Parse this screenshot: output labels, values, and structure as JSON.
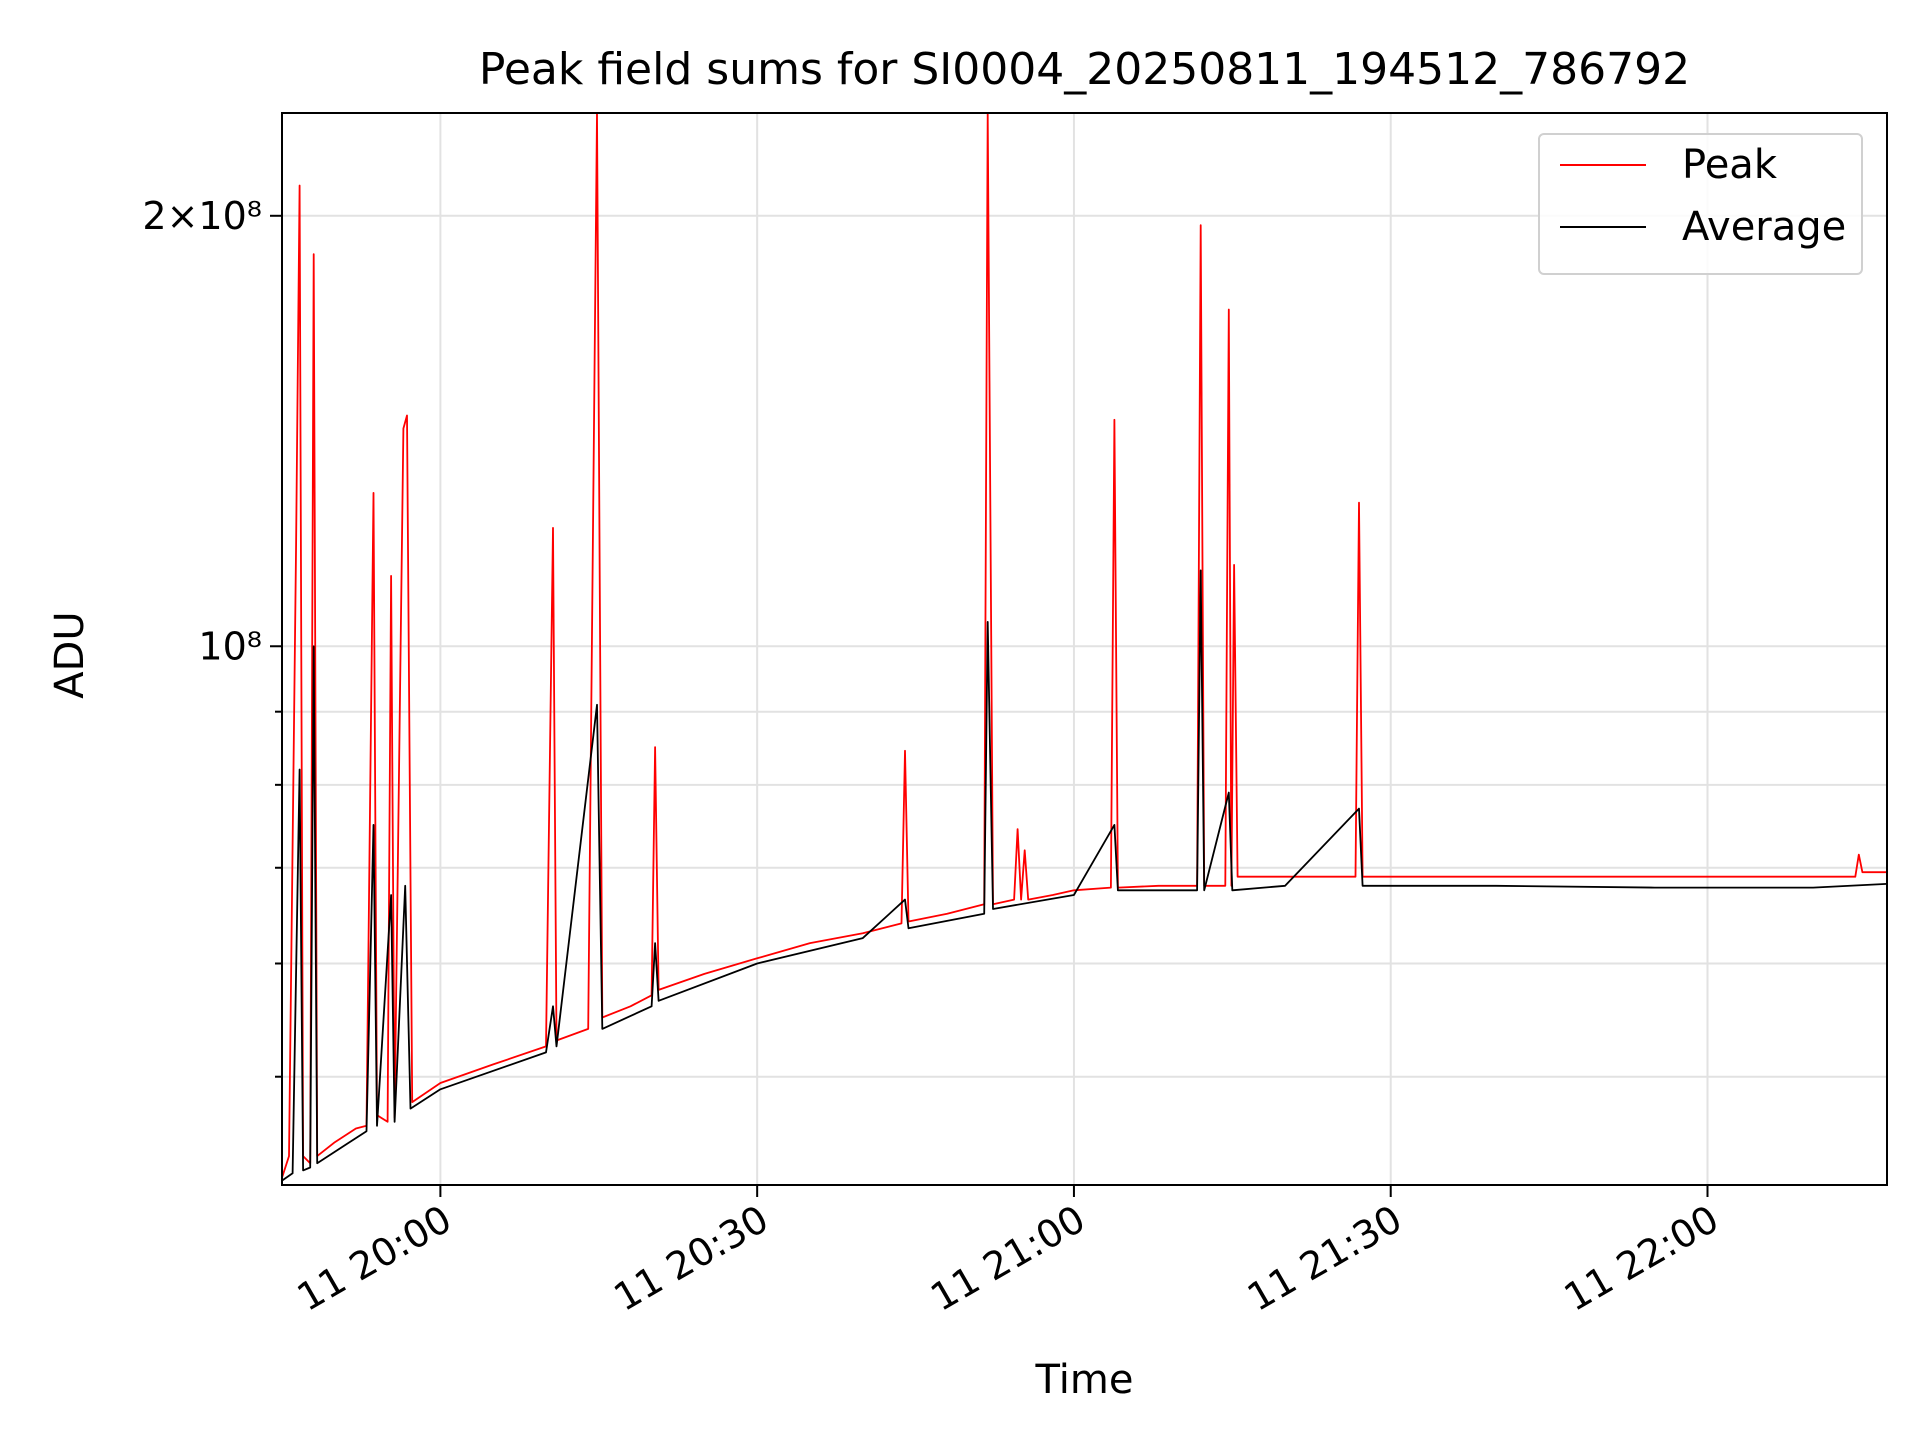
{
  "chart_data": {
    "type": "line",
    "title": "Peak field sums for SI0004_20250811_194512_786792",
    "xlabel": "Time",
    "ylabel": "ADU",
    "yscale": "log",
    "ylim": [
      42000000,
      236000000
    ],
    "x_range": [
      "2025-08-11 19:45:00",
      "2025-08-11 22:17:00"
    ],
    "x_ticks": [
      "11 20:00",
      "11 20:30",
      "11 21:00",
      "11 21:30",
      "11 22:00"
    ],
    "y_ticks": [
      "2×10⁸",
      "10⁸"
    ],
    "grid": true,
    "legend_position": "upper right",
    "colors": {
      "Peak": "#ff0000",
      "Average": "#000000"
    },
    "series": [
      {
        "name": "Peak",
        "points": [
          [
            "2025-08-11 19:45:00",
            42500000
          ],
          [
            "2025-08-11 19:45:40",
            44000000
          ],
          [
            "2025-08-11 19:46:20",
            118000000
          ],
          [
            "2025-08-11 19:46:40",
            210000000
          ],
          [
            "2025-08-11 19:47:00",
            44000000
          ],
          [
            "2025-08-11 19:47:40",
            43500000
          ],
          [
            "2025-08-11 19:48:00",
            188000000
          ],
          [
            "2025-08-11 19:48:20",
            44000000
          ],
          [
            "2025-08-11 19:50:00",
            45000000
          ],
          [
            "2025-08-11 19:52:00",
            46000000
          ],
          [
            "2025-08-11 19:53:00",
            46200000
          ],
          [
            "2025-08-11 19:53:40",
            128000000
          ],
          [
            "2025-08-11 19:54:00",
            47000000
          ],
          [
            "2025-08-11 19:55:00",
            46500000
          ],
          [
            "2025-08-11 19:55:20",
            112000000
          ],
          [
            "2025-08-11 19:55:40",
            46800000
          ],
          [
            "2025-08-11 19:56:30",
            142000000
          ],
          [
            "2025-08-11 19:56:50",
            145000000
          ],
          [
            "2025-08-11 19:57:20",
            48000000
          ],
          [
            "2025-08-11 20:00:00",
            49500000
          ],
          [
            "2025-08-11 20:05:00",
            51000000
          ],
          [
            "2025-08-11 20:10:00",
            52500000
          ],
          [
            "2025-08-11 20:10:40",
            121000000
          ],
          [
            "2025-08-11 20:11:00",
            53000000
          ],
          [
            "2025-08-11 20:14:00",
            54000000
          ],
          [
            "2025-08-11 20:14:50",
            236000000
          ],
          [
            "2025-08-11 20:15:20",
            55000000
          ],
          [
            "2025-08-11 20:18:00",
            56000000
          ],
          [
            "2025-08-11 20:20:00",
            57000000
          ],
          [
            "2025-08-11 20:20:20",
            85000000
          ],
          [
            "2025-08-11 20:20:40",
            57500000
          ],
          [
            "2025-08-11 20:25:00",
            59000000
          ],
          [
            "2025-08-11 20:30:00",
            60500000
          ],
          [
            "2025-08-11 20:35:00",
            62000000
          ],
          [
            "2025-08-11 20:40:00",
            63000000
          ],
          [
            "2025-08-11 20:43:40",
            64000000
          ],
          [
            "2025-08-11 20:44:00",
            84500000
          ],
          [
            "2025-08-11 20:44:20",
            64200000
          ],
          [
            "2025-08-11 20:48:00",
            65000000
          ],
          [
            "2025-08-11 20:51:30",
            66000000
          ],
          [
            "2025-08-11 20:51:50",
            236000000
          ],
          [
            "2025-08-11 20:52:20",
            66000000
          ],
          [
            "2025-08-11 20:54:20",
            66500000
          ],
          [
            "2025-08-11 20:54:40",
            74500000
          ],
          [
            "2025-08-11 20:55:00",
            66500000
          ],
          [
            "2025-08-11 20:55:20",
            72000000
          ],
          [
            "2025-08-11 20:55:40",
            66500000
          ],
          [
            "2025-08-11 20:58:00",
            67000000
          ],
          [
            "2025-08-11 21:00:00",
            67500000
          ],
          [
            "2025-08-11 21:03:30",
            67800000
          ],
          [
            "2025-08-11 21:03:50",
            144000000
          ],
          [
            "2025-08-11 21:04:10",
            67800000
          ],
          [
            "2025-08-11 21:08:00",
            68000000
          ],
          [
            "2025-08-11 21:11:40",
            68000000
          ],
          [
            "2025-08-11 21:12:00",
            197000000
          ],
          [
            "2025-08-11 21:12:20",
            68000000
          ],
          [
            "2025-08-11 21:14:20",
            68000000
          ],
          [
            "2025-08-11 21:14:40",
            172000000
          ],
          [
            "2025-08-11 21:14:55",
            68000000
          ],
          [
            "2025-08-11 21:15:10",
            114000000
          ],
          [
            "2025-08-11 21:15:30",
            69000000
          ],
          [
            "2025-08-11 21:20:00",
            69000000
          ],
          [
            "2025-08-11 21:26:40",
            69000000
          ],
          [
            "2025-08-11 21:27:00",
            126000000
          ],
          [
            "2025-08-11 21:27:20",
            69000000
          ],
          [
            "2025-08-11 21:35:00",
            69000000
          ],
          [
            "2025-08-11 21:45:00",
            69000000
          ],
          [
            "2025-08-11 21:55:00",
            69000000
          ],
          [
            "2025-08-11 22:05:00",
            69000000
          ],
          [
            "2025-08-11 22:14:00",
            69000000
          ],
          [
            "2025-08-11 22:14:20",
            71500000
          ],
          [
            "2025-08-11 22:14:40",
            69500000
          ],
          [
            "2025-08-11 22:17:00",
            69500000
          ]
        ]
      },
      {
        "name": "Average",
        "points": [
          [
            "2025-08-11 19:45:00",
            42300000
          ],
          [
            "2025-08-11 19:46:00",
            42800000
          ],
          [
            "2025-08-11 19:46:40",
            82000000
          ],
          [
            "2025-08-11 19:47:00",
            43000000
          ],
          [
            "2025-08-11 19:47:40",
            43200000
          ],
          [
            "2025-08-11 19:48:00",
            100000000
          ],
          [
            "2025-08-11 19:48:20",
            43500000
          ],
          [
            "2025-08-11 19:53:00",
            45800000
          ],
          [
            "2025-08-11 19:53:40",
            75000000
          ],
          [
            "2025-08-11 19:54:00",
            46200000
          ],
          [
            "2025-08-11 19:55:20",
            67000000
          ],
          [
            "2025-08-11 19:55:40",
            46500000
          ],
          [
            "2025-08-11 19:56:40",
            68000000
          ],
          [
            "2025-08-11 19:57:10",
            47500000
          ],
          [
            "2025-08-11 20:00:00",
            49000000
          ],
          [
            "2025-08-11 20:10:00",
            52000000
          ],
          [
            "2025-08-11 20:10:40",
            56000000
          ],
          [
            "2025-08-11 20:11:00",
            52500000
          ],
          [
            "2025-08-11 20:14:50",
            91000000
          ],
          [
            "2025-08-11 20:15:20",
            54000000
          ],
          [
            "2025-08-11 20:20:00",
            56000000
          ],
          [
            "2025-08-11 20:20:20",
            62000000
          ],
          [
            "2025-08-11 20:20:40",
            56500000
          ],
          [
            "2025-08-11 20:30:00",
            60000000
          ],
          [
            "2025-08-11 20:40:00",
            62500000
          ],
          [
            "2025-08-11 20:44:00",
            66500000
          ],
          [
            "2025-08-11 20:44:20",
            63500000
          ],
          [
            "2025-08-11 20:51:30",
            65000000
          ],
          [
            "2025-08-11 20:51:50",
            104000000
          ],
          [
            "2025-08-11 20:52:20",
            65500000
          ],
          [
            "2025-08-11 21:00:00",
            67000000
          ],
          [
            "2025-08-11 21:03:50",
            75000000
          ],
          [
            "2025-08-11 21:04:10",
            67500000
          ],
          [
            "2025-08-11 21:11:40",
            67500000
          ],
          [
            "2025-08-11 21:12:00",
            113000000
          ],
          [
            "2025-08-11 21:12:20",
            67500000
          ],
          [
            "2025-08-11 21:14:40",
            79000000
          ],
          [
            "2025-08-11 21:15:00",
            67500000
          ],
          [
            "2025-08-11 21:20:00",
            68000000
          ],
          [
            "2025-08-11 21:27:00",
            77000000
          ],
          [
            "2025-08-11 21:27:20",
            68000000
          ],
          [
            "2025-08-11 21:40:00",
            68000000
          ],
          [
            "2025-08-11 21:55:00",
            67800000
          ],
          [
            "2025-08-11 22:10:00",
            67800000
          ],
          [
            "2025-08-11 22:17:00",
            68200000
          ]
        ]
      }
    ]
  }
}
